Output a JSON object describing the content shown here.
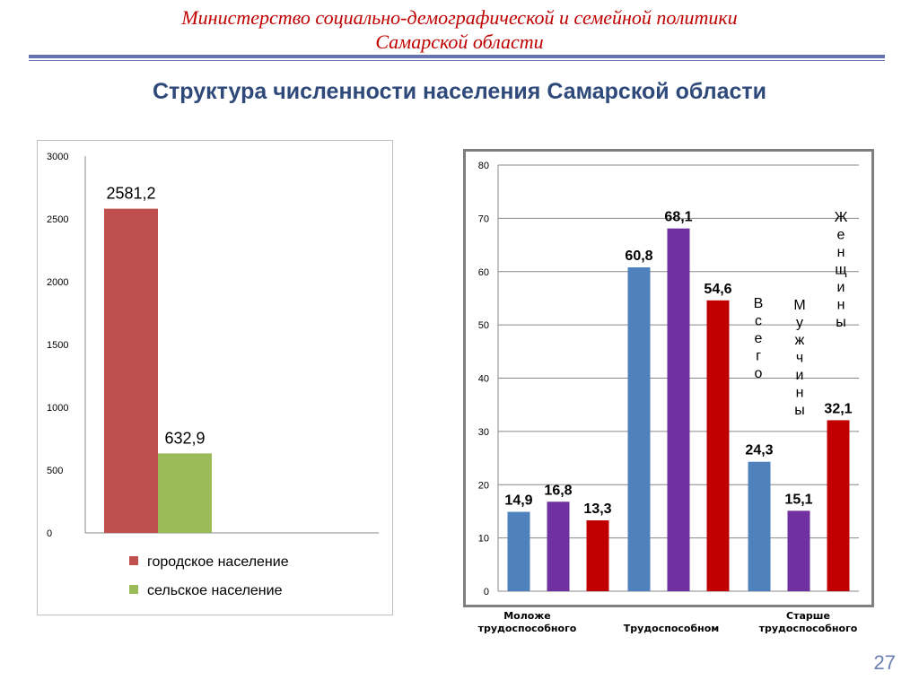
{
  "header": {
    "line1": "Министерство социально-демографической и семейной политики",
    "line2": "Самарской области"
  },
  "slide_title": "Структура численности населения Самарской области",
  "page_number": "27",
  "chart_data": [
    {
      "type": "bar",
      "title": "",
      "categories": [
        ""
      ],
      "series": [
        {
          "name": "городское население",
          "values": [
            2581.2
          ],
          "label": "2581,2",
          "color": "#c0504d"
        },
        {
          "name": "сельское население",
          "values": [
            632.9
          ],
          "label": "632,9",
          "color": "#9bbb59"
        }
      ],
      "ylim": [
        0,
        3000
      ],
      "yticks": [
        "0",
        "500",
        "1000",
        "1500",
        "2000",
        "2500",
        "3000"
      ],
      "legend": "bottom",
      "grid": false
    },
    {
      "type": "bar",
      "title": "",
      "categories": [
        "Моложе трудоспособного",
        "Трудоспособном",
        "Старше трудоспособного"
      ],
      "series": [
        {
          "name": "Всего",
          "values": [
            14.9,
            60.8,
            24.3
          ],
          "labels": [
            "14,9",
            "60,8",
            "24,3"
          ],
          "color": "#4f81bd"
        },
        {
          "name": "Мужчины",
          "values": [
            16.8,
            68.1,
            15.1
          ],
          "labels": [
            "16,8",
            "68,1",
            "15,1"
          ],
          "color": "#7030a0"
        },
        {
          "name": "Женщины",
          "values": [
            13.3,
            54.6,
            32.1
          ],
          "labels": [
            "13,3",
            "54,6",
            "32,1"
          ],
          "color": "#c00000"
        }
      ],
      "ylim": [
        0,
        80
      ],
      "yticks": [
        "0",
        "10",
        "20",
        "30",
        "40",
        "50",
        "60",
        "70",
        "80"
      ],
      "legend": "inside-right-vertical",
      "grid": true
    }
  ]
}
